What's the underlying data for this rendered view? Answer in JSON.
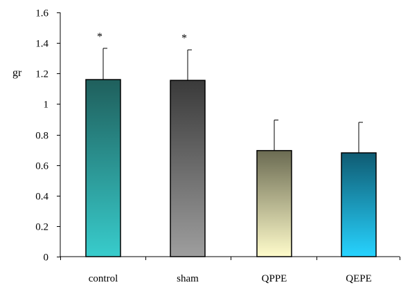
{
  "chart_data": {
    "type": "bar",
    "ylabel": "gr",
    "ylim": [
      0,
      1.6
    ],
    "yticks": [
      0,
      0.2,
      0.4,
      0.6,
      0.8,
      1,
      1.2,
      1.4,
      1.6
    ],
    "ytick_labels": [
      "0",
      "0.2",
      "0.4",
      "0.6",
      "0.8",
      "1",
      "1.2",
      "1.4",
      "1.6"
    ],
    "categories": [
      "control",
      "sham",
      "QPPE",
      "QEPE"
    ],
    "values": [
      1.16,
      1.155,
      0.695,
      0.68
    ],
    "errors": [
      0.205,
      0.2,
      0.2,
      0.2
    ],
    "significance": [
      "*",
      "*",
      "",
      ""
    ],
    "bar_colors": [
      {
        "top": "#1f5f5c",
        "bottom": "#38cccc"
      },
      {
        "top": "#3a3a3a",
        "bottom": "#9e9e9e"
      },
      {
        "top": "#6b6b52",
        "bottom": "#fffccb"
      },
      {
        "top": "#0f5b72",
        "bottom": "#27d3ff"
      }
    ],
    "grid": false,
    "legend": "none"
  }
}
